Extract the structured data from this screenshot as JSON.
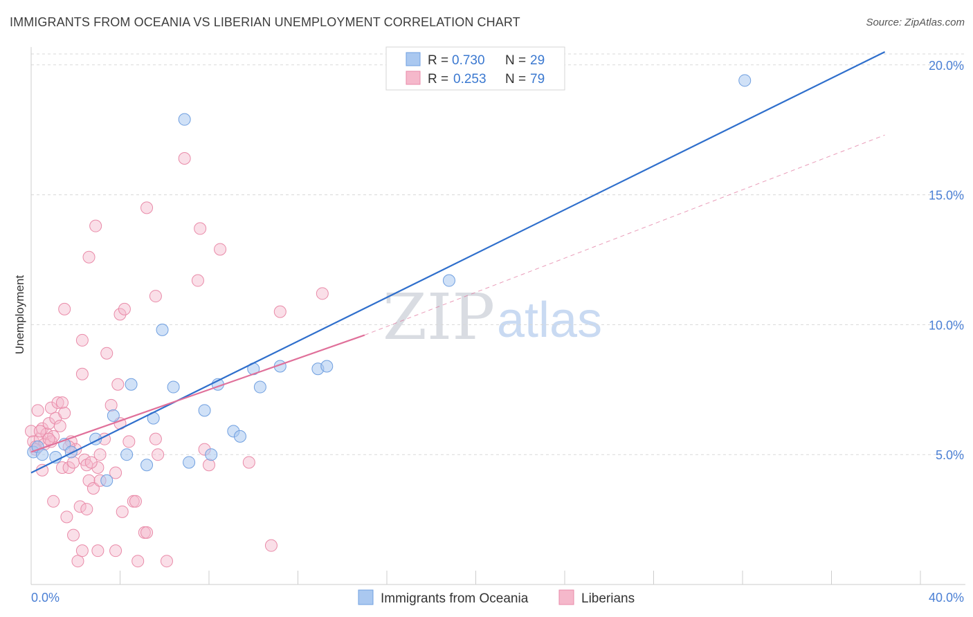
{
  "title": "IMMIGRANTS FROM OCEANIA VS LIBERIAN UNEMPLOYMENT CORRELATION CHART",
  "source": "Source: ZipAtlas.com",
  "watermark": {
    "part1": "ZIP",
    "part2": "atlas"
  },
  "colors": {
    "blue_fill": "#aac8f0",
    "blue_stroke": "#6f9fe0",
    "blue_line": "#2f6fcc",
    "pink_fill": "#f5b8cb",
    "pink_stroke": "#e98aa8",
    "pink_line": "#e0709a",
    "axis_text": "#4a7fd4",
    "grid": "#d8d8d8"
  },
  "legend": {
    "rows": [
      {
        "r_label": "R =",
        "r_value": "0.730",
        "n_label": "N =",
        "n_value": "29"
      },
      {
        "r_label": "R =",
        "r_value": "0.253",
        "n_label": "N =",
        "n_value": "79"
      }
    ]
  },
  "chart_data": {
    "type": "scatter",
    "title": "IMMIGRANTS FROM OCEANIA VS LIBERIAN UNEMPLOYMENT CORRELATION CHART",
    "xlabel": "",
    "ylabel": "Unemployment",
    "xlim": [
      0,
      40
    ],
    "ylim": [
      0,
      20.5
    ],
    "x_tick_labels": [
      "0.0%",
      "40.0%"
    ],
    "y_ticks": [
      5,
      10,
      15,
      20
    ],
    "y_tick_labels": [
      "5.0%",
      "10.0%",
      "15.0%",
      "20.0%"
    ],
    "series": [
      {
        "name": "Immigrants from Oceania",
        "R": 0.73,
        "N": 29,
        "trend": {
          "x0": 0,
          "y0": 4.3,
          "x1": 38.4,
          "y1": 20.5,
          "style": "solid"
        },
        "points": [
          [
            0.1,
            5.1
          ],
          [
            0.3,
            5.3
          ],
          [
            0.5,
            5.0
          ],
          [
            1.1,
            4.9
          ],
          [
            1.5,
            5.4
          ],
          [
            1.8,
            5.1
          ],
          [
            2.9,
            5.6
          ],
          [
            3.4,
            4.0
          ],
          [
            3.7,
            6.5
          ],
          [
            4.3,
            5.0
          ],
          [
            4.5,
            7.7
          ],
          [
            5.2,
            4.6
          ],
          [
            5.5,
            6.4
          ],
          [
            5.9,
            9.8
          ],
          [
            6.4,
            7.6
          ],
          [
            6.9,
            17.9
          ],
          [
            7.1,
            4.7
          ],
          [
            7.8,
            6.7
          ],
          [
            8.1,
            5.0
          ],
          [
            8.4,
            7.7
          ],
          [
            9.1,
            5.9
          ],
          [
            9.4,
            5.7
          ],
          [
            10.0,
            8.3
          ],
          [
            10.3,
            7.6
          ],
          [
            11.2,
            8.4
          ],
          [
            12.9,
            8.3
          ],
          [
            13.3,
            8.4
          ],
          [
            18.8,
            11.7
          ],
          [
            32.1,
            19.4
          ]
        ]
      },
      {
        "name": "Liberians",
        "R": 0.253,
        "N": 79,
        "trend": {
          "x0": 0,
          "y0": 5.1,
          "x1": 15.0,
          "y1": 9.6,
          "style": "solid",
          "extension": {
            "x1": 38.4,
            "y1": 17.3,
            "style": "dashed"
          }
        },
        "points": [
          [
            0.0,
            5.9
          ],
          [
            0.1,
            5.5
          ],
          [
            0.2,
            5.3
          ],
          [
            0.3,
            6.7
          ],
          [
            0.4,
            5.6
          ],
          [
            0.5,
            6.0
          ],
          [
            0.5,
            4.4
          ],
          [
            0.6,
            5.4
          ],
          [
            0.7,
            5.8
          ],
          [
            0.8,
            6.2
          ],
          [
            0.9,
            5.5
          ],
          [
            0.9,
            6.8
          ],
          [
            1.0,
            3.2
          ],
          [
            1.0,
            5.7
          ],
          [
            1.1,
            6.4
          ],
          [
            1.2,
            7.0
          ],
          [
            1.3,
            6.1
          ],
          [
            1.4,
            4.5
          ],
          [
            1.4,
            7.0
          ],
          [
            1.5,
            6.6
          ],
          [
            1.5,
            10.6
          ],
          [
            1.6,
            2.6
          ],
          [
            1.7,
            4.5
          ],
          [
            1.8,
            5.5
          ],
          [
            1.9,
            4.7
          ],
          [
            1.9,
            1.9
          ],
          [
            2.0,
            5.2
          ],
          [
            2.1,
            0.9
          ],
          [
            2.2,
            3.0
          ],
          [
            2.3,
            9.4
          ],
          [
            2.3,
            8.1
          ],
          [
            2.3,
            1.3
          ],
          [
            2.4,
            4.8
          ],
          [
            2.5,
            4.6
          ],
          [
            2.5,
            2.9
          ],
          [
            2.6,
            12.6
          ],
          [
            2.6,
            4.0
          ],
          [
            2.8,
            3.7
          ],
          [
            2.9,
            13.8
          ],
          [
            3.0,
            4.5
          ],
          [
            3.0,
            1.3
          ],
          [
            3.1,
            5.0
          ],
          [
            3.1,
            4.0
          ],
          [
            3.3,
            5.6
          ],
          [
            3.4,
            8.9
          ],
          [
            3.6,
            6.9
          ],
          [
            3.8,
            4.3
          ],
          [
            3.8,
            1.3
          ],
          [
            3.9,
            7.7
          ],
          [
            4.0,
            6.2
          ],
          [
            4.0,
            10.4
          ],
          [
            4.1,
            2.8
          ],
          [
            4.2,
            10.6
          ],
          [
            4.4,
            5.5
          ],
          [
            4.6,
            3.2
          ],
          [
            4.7,
            3.2
          ],
          [
            4.8,
            0.9
          ],
          [
            5.1,
            2.0
          ],
          [
            5.2,
            2.0
          ],
          [
            5.2,
            14.5
          ],
          [
            5.6,
            11.1
          ],
          [
            5.6,
            5.6
          ],
          [
            5.7,
            5.0
          ],
          [
            6.1,
            0.9
          ],
          [
            6.9,
            16.4
          ],
          [
            7.5,
            11.7
          ],
          [
            7.6,
            13.7
          ],
          [
            7.8,
            5.2
          ],
          [
            8.0,
            4.6
          ],
          [
            8.5,
            12.9
          ],
          [
            9.8,
            4.7
          ],
          [
            10.8,
            1.5
          ],
          [
            11.2,
            10.5
          ],
          [
            13.1,
            11.2
          ],
          [
            0.2,
            5.2
          ],
          [
            0.4,
            5.9
          ],
          [
            0.8,
            5.6
          ],
          [
            1.7,
            5.3
          ],
          [
            2.7,
            4.7
          ]
        ]
      }
    ],
    "legend_position": "top-center",
    "grid": true
  }
}
